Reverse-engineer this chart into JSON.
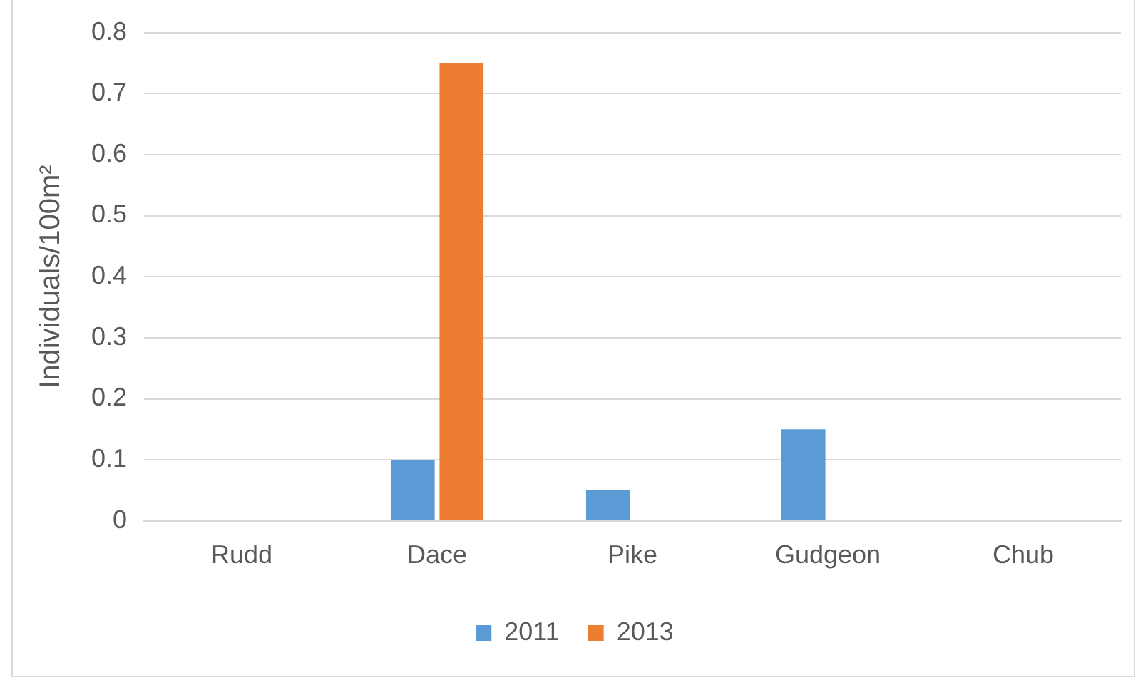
{
  "chart_data": {
    "type": "bar",
    "ylabel": "Individuals/100m²",
    "categories": [
      "Rudd",
      "Dace",
      "Pike",
      "Gudgeon",
      "Chub"
    ],
    "series": [
      {
        "name": "2011",
        "color": "#5b9bd5",
        "values": [
          0,
          0.1,
          0.05,
          0.15,
          0
        ]
      },
      {
        "name": "2013",
        "color": "#ed7d31",
        "values": [
          0,
          0.75,
          0,
          0,
          0
        ]
      }
    ],
    "ylim": [
      0,
      0.8
    ],
    "yticks": [
      0,
      0.1,
      0.2,
      0.3,
      0.4,
      0.5,
      0.6,
      0.7,
      0.8
    ],
    "grid": "y",
    "legend": "bottom"
  }
}
